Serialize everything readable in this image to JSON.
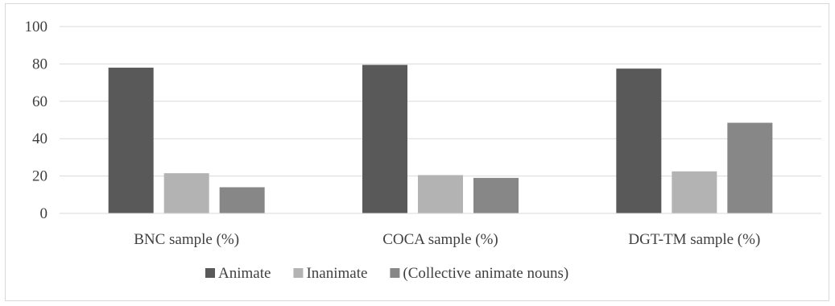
{
  "chart_data": {
    "type": "bar",
    "categories": [
      "BNC sample (%)",
      "COCA sample (%)",
      "DGT-TM sample (%)"
    ],
    "series": [
      {
        "name": "Animate",
        "values": [
          78,
          79.5,
          77.5
        ],
        "color": "#595959"
      },
      {
        "name": "Inanimate",
        "values": [
          21.5,
          20.5,
          22.5
        ],
        "color": "#b3b3b3"
      },
      {
        "name": "(Collective animate nouns)",
        "values": [
          14,
          19,
          48.5
        ],
        "color": "#878787"
      }
    ],
    "ylim": [
      0,
      100
    ],
    "yticks": [
      0,
      20,
      40,
      60,
      80,
      100
    ],
    "grid": true,
    "legend_position": "bottom"
  }
}
